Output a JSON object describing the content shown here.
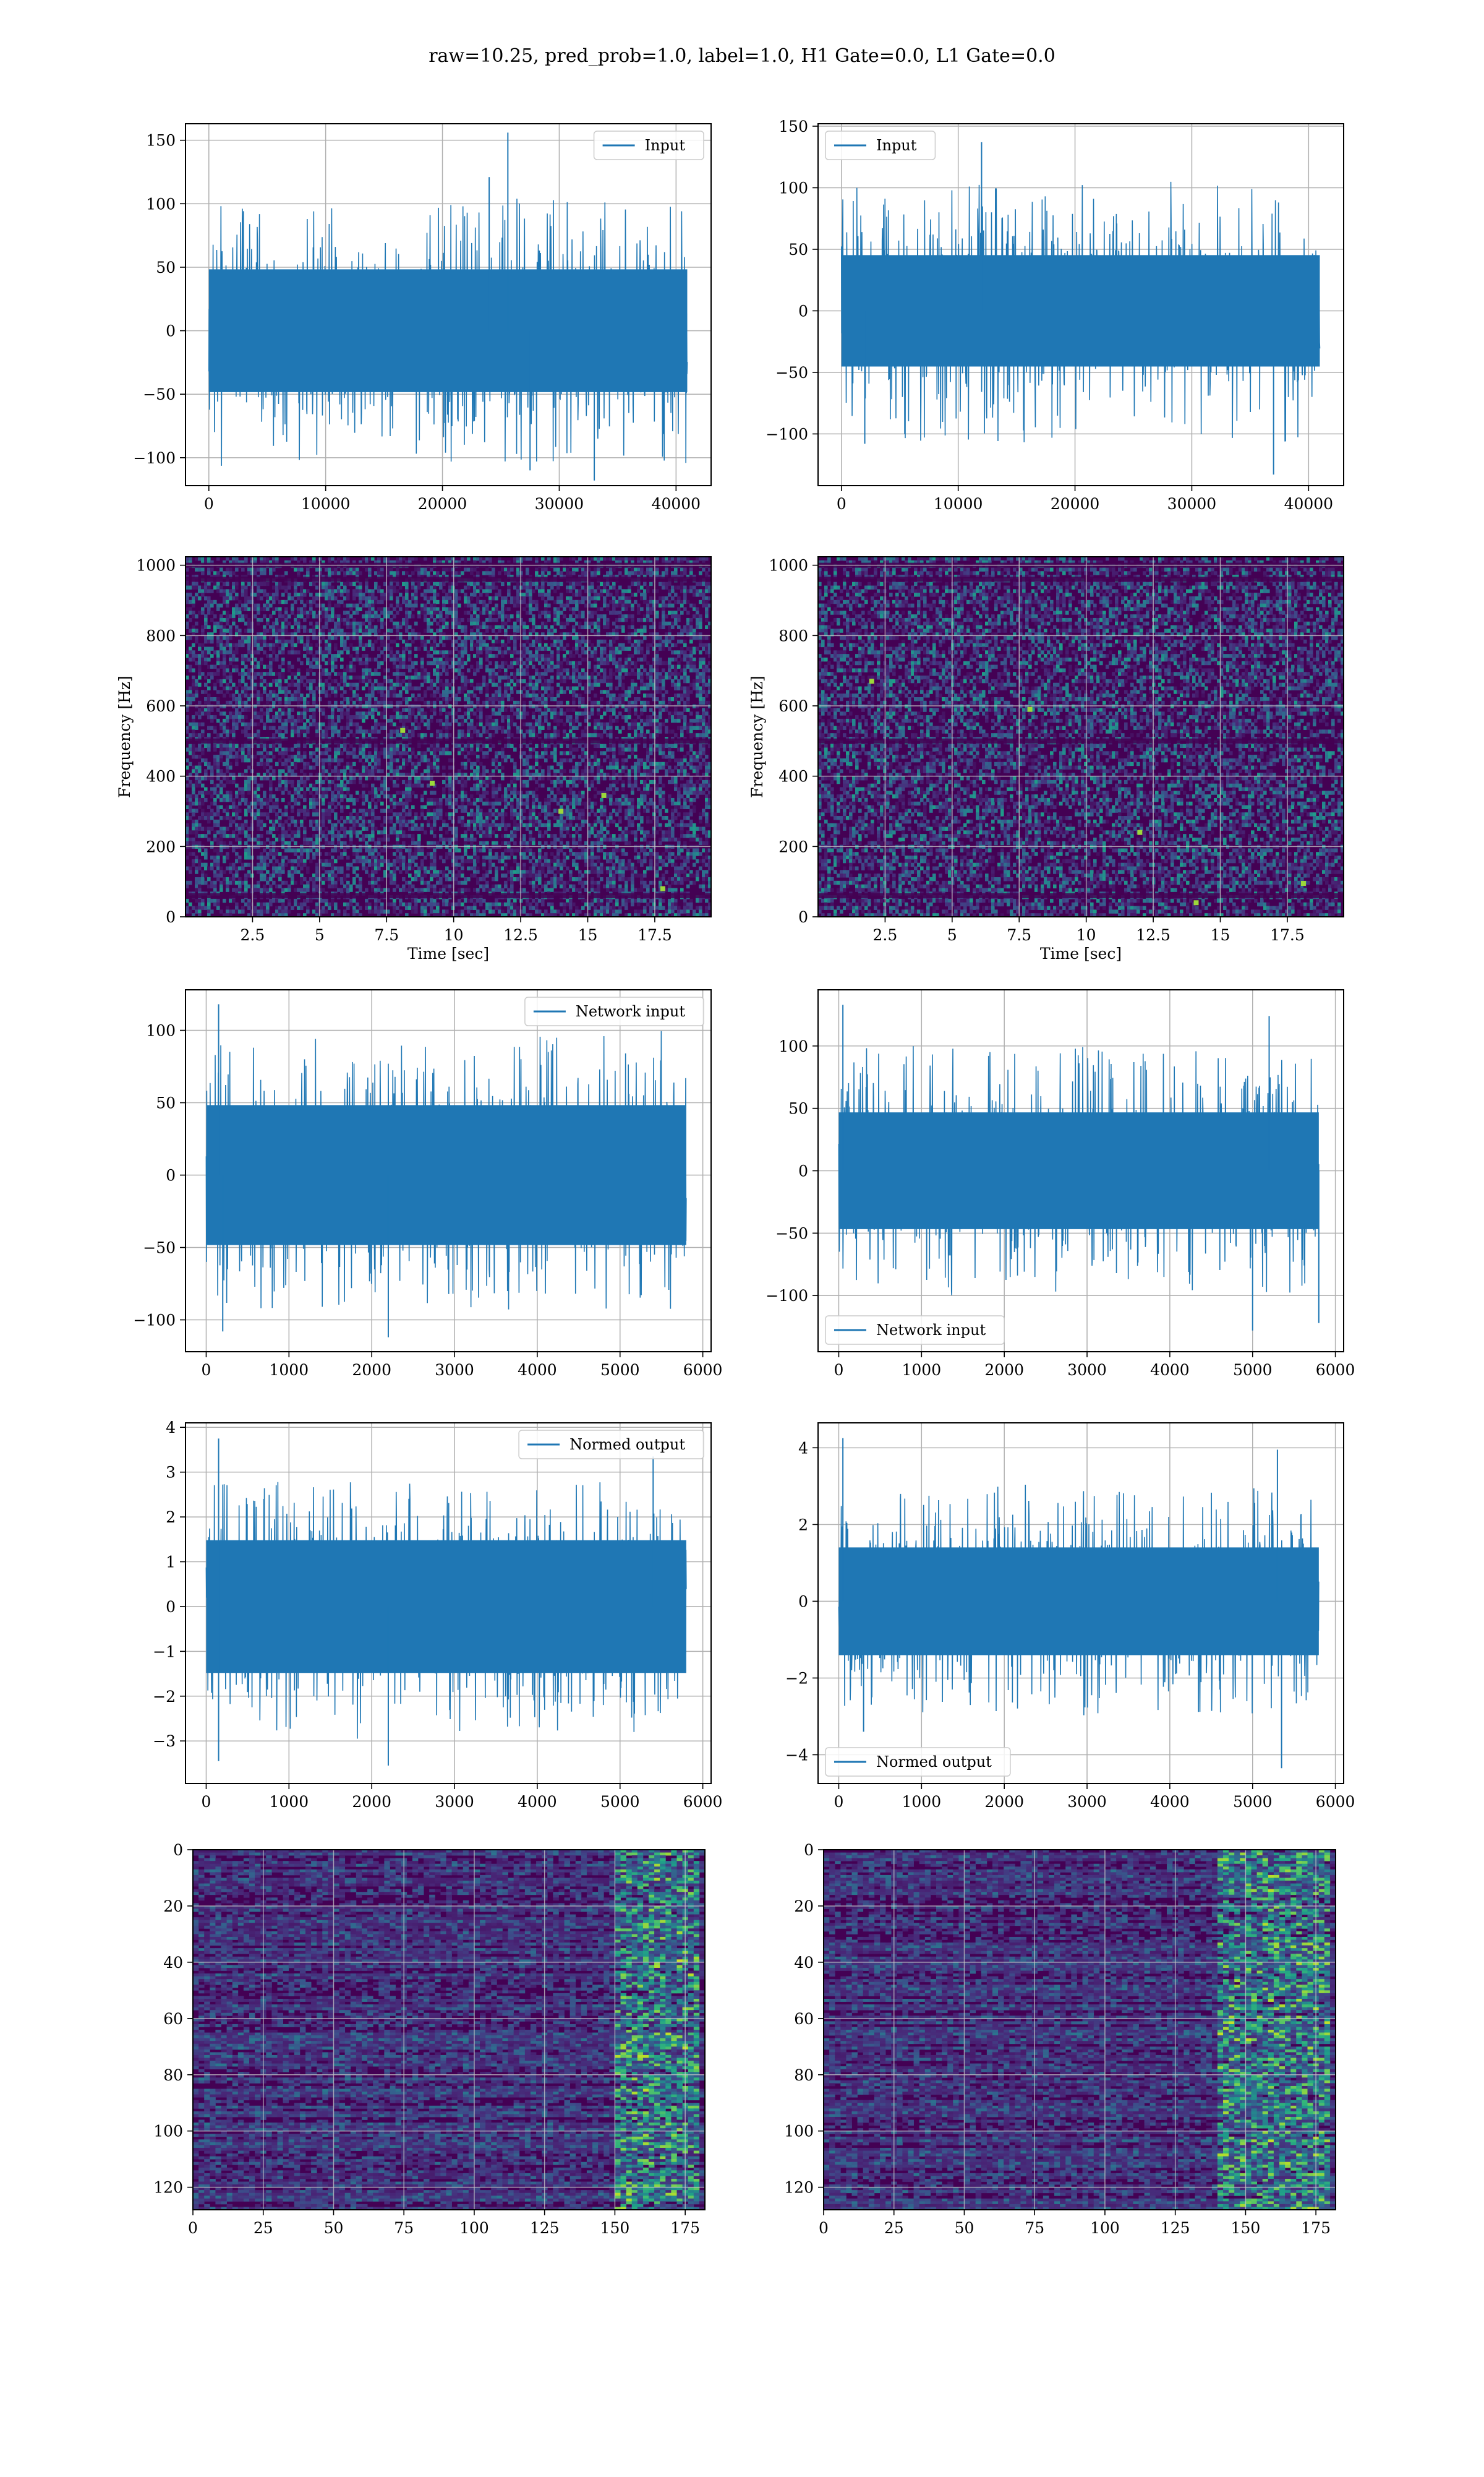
{
  "figure": {
    "suptitle": "raw=10.25, pred_prob=1.0, label=1.0, H1 Gate=0.0, L1 Gate=0.0"
  },
  "colors": {
    "line": "#1f77b4",
    "grid": "#b0b0b0",
    "viridis_dark": "#440154",
    "viridis_mid": "#31688e",
    "viridis_teal": "#21918c",
    "viridis_green": "#35b779",
    "viridis_yellow": "#fde725"
  },
  "chart_data": [
    {
      "id": "r1l",
      "type": "line",
      "row": 0,
      "col": 0,
      "legend": "Input",
      "legend_loc": "upper right",
      "xlabel": "",
      "ylabel": "",
      "xlim": [
        -2000,
        43000
      ],
      "ylim": [
        -122,
        163
      ],
      "xticks": [
        0,
        10000,
        20000,
        30000,
        40000
      ],
      "yticks": [
        -100,
        -50,
        0,
        50,
        100,
        150
      ],
      "signal": {
        "x_start": 0,
        "x_end": 40960,
        "base_amp": 62,
        "spike_max": 115,
        "spike_min": -118,
        "seed": 11,
        "peaks": [
          [
            25600,
            156
          ],
          [
            24000,
            121
          ],
          [
            33000,
            -118
          ],
          [
            27500,
            -110
          ]
        ]
      }
    },
    {
      "id": "r1r",
      "type": "line",
      "row": 0,
      "col": 1,
      "legend": "Input",
      "legend_loc": "upper left",
      "xlabel": "",
      "ylabel": "",
      "xlim": [
        -2000,
        43000
      ],
      "ylim": [
        -142,
        152
      ],
      "xticks": [
        0,
        10000,
        20000,
        30000,
        40000
      ],
      "yticks": [
        -100,
        -50,
        0,
        50,
        100,
        150
      ],
      "signal": {
        "x_start": 0,
        "x_end": 40960,
        "base_amp": 58,
        "spike_max": 120,
        "spike_min": -120,
        "seed": 23,
        "peaks": [
          [
            12000,
            137
          ],
          [
            37000,
            -133
          ],
          [
            2000,
            -108
          ]
        ]
      }
    },
    {
      "id": "r2l",
      "type": "heatmap",
      "row": 1,
      "col": 0,
      "xlabel": "Time [sec]",
      "ylabel": "Frequency [Hz]",
      "xlim": [
        0,
        19.6
      ],
      "ylim": [
        0,
        1024
      ],
      "xticks": [
        2.5,
        5.0,
        7.5,
        10.0,
        12.5,
        15.0,
        17.5
      ],
      "yticks": [
        0,
        200,
        400,
        600,
        800,
        1000
      ],
      "dark_rows": [
        60,
        500,
        960,
        1000
      ],
      "highlights": [
        [
          9.2,
          380
        ],
        [
          15.6,
          345
        ],
        [
          17.8,
          80
        ],
        [
          8.1,
          530
        ],
        [
          14.0,
          300
        ]
      ],
      "seed": 5
    },
    {
      "id": "r2r",
      "type": "heatmap",
      "row": 1,
      "col": 1,
      "xlabel": "Time [sec]",
      "ylabel": "Frequency [Hz]",
      "xlim": [
        0,
        19.6
      ],
      "ylim": [
        0,
        1024
      ],
      "xticks": [
        2.5,
        5.0,
        7.5,
        10.0,
        12.5,
        15.0,
        17.5
      ],
      "yticks": [
        0,
        200,
        400,
        600,
        800,
        1000
      ],
      "dark_rows": [
        60,
        500,
        960,
        1000
      ],
      "highlights": [
        [
          18.1,
          95
        ],
        [
          14.1,
          40
        ],
        [
          2.0,
          670
        ],
        [
          7.9,
          590
        ],
        [
          12.0,
          240
        ]
      ],
      "seed": 9
    },
    {
      "id": "r3l",
      "type": "line",
      "row": 2,
      "col": 0,
      "legend": "Network input",
      "legend_loc": "upper right",
      "xlabel": "",
      "ylabel": "",
      "xlim": [
        -250,
        6100
      ],
      "ylim": [
        -122,
        128
      ],
      "xticks": [
        0,
        1000,
        2000,
        3000,
        4000,
        5000,
        6000
      ],
      "yticks": [
        -100,
        -50,
        0,
        50,
        100
      ],
      "signal": {
        "x_start": 0,
        "x_end": 5800,
        "base_amp": 62,
        "spike_max": 105,
        "spike_min": -108,
        "seed": 31,
        "peaks": [
          [
            150,
            118
          ],
          [
            2200,
            -112
          ],
          [
            200,
            -108
          ]
        ]
      }
    },
    {
      "id": "r3r",
      "type": "line",
      "row": 2,
      "col": 1,
      "legend": "Network input",
      "legend_loc": "lower left",
      "xlabel": "",
      "ylabel": "",
      "xlim": [
        -250,
        6100
      ],
      "ylim": [
        -145,
        145
      ],
      "xticks": [
        0,
        1000,
        2000,
        3000,
        4000,
        5000,
        6000
      ],
      "yticks": [
        -100,
        -50,
        0,
        50,
        100
      ],
      "signal": {
        "x_start": 0,
        "x_end": 5800,
        "base_amp": 60,
        "spike_max": 110,
        "spike_min": -115,
        "seed": 47,
        "peaks": [
          [
            50,
            133
          ],
          [
            5200,
            124
          ],
          [
            5800,
            -122
          ],
          [
            5000,
            -128
          ]
        ]
      }
    },
    {
      "id": "r4l",
      "type": "line",
      "row": 3,
      "col": 0,
      "legend": "Normed output",
      "legend_loc": "upper right",
      "xlabel": "",
      "ylabel": "",
      "xlim": [
        -250,
        6100
      ],
      "ylim": [
        -3.95,
        4.1
      ],
      "xticks": [
        0,
        1000,
        2000,
        3000,
        4000,
        5000,
        6000
      ],
      "yticks": [
        -3,
        -2,
        -1,
        0,
        1,
        2,
        3,
        4
      ],
      "signal": {
        "x_start": 0,
        "x_end": 5800,
        "base_amp": 1.9,
        "spike_max": 3.0,
        "spike_min": -3.1,
        "seed": 53,
        "peaks": [
          [
            150,
            3.75
          ],
          [
            150,
            -3.45
          ],
          [
            2200,
            -3.55
          ],
          [
            5400,
            3.35
          ]
        ]
      }
    },
    {
      "id": "r4r",
      "type": "line",
      "row": 3,
      "col": 1,
      "legend": "Normed output",
      "legend_loc": "lower left",
      "xlabel": "",
      "ylabel": "",
      "xlim": [
        -250,
        6100
      ],
      "ylim": [
        -4.75,
        4.65
      ],
      "xticks": [
        0,
        1000,
        2000,
        3000,
        4000,
        5000,
        6000
      ],
      "yticks": [
        -4,
        -2,
        0,
        2,
        4
      ],
      "signal": {
        "x_start": 0,
        "x_end": 5800,
        "base_amp": 1.8,
        "spike_max": 3.4,
        "spike_min": -3.6,
        "seed": 67,
        "peaks": [
          [
            50,
            4.25
          ],
          [
            5300,
            3.95
          ],
          [
            5350,
            -4.35
          ],
          [
            300,
            -3.4
          ]
        ]
      }
    },
    {
      "id": "r5l",
      "type": "heatmap",
      "row": 4,
      "col": 0,
      "style": "feature",
      "xlabel": "",
      "ylabel": "",
      "xlim": [
        0,
        182
      ],
      "ylim": [
        128,
        0
      ],
      "xticks": [
        0,
        25,
        50,
        75,
        100,
        125,
        150,
        175
      ],
      "yticks": [
        0,
        20,
        40,
        60,
        80,
        100,
        120
      ],
      "bright_band": [
        150,
        178
      ],
      "seed": 13
    },
    {
      "id": "r5r",
      "type": "heatmap",
      "row": 4,
      "col": 1,
      "style": "feature",
      "xlabel": "",
      "ylabel": "",
      "xlim": [
        0,
        182
      ],
      "ylim": [
        128,
        0
      ],
      "xticks": [
        0,
        25,
        50,
        75,
        100,
        125,
        150,
        175
      ],
      "yticks": [
        0,
        20,
        40,
        60,
        80,
        100,
        120
      ],
      "bright_band": [
        140,
        178
      ],
      "seed": 29
    }
  ]
}
